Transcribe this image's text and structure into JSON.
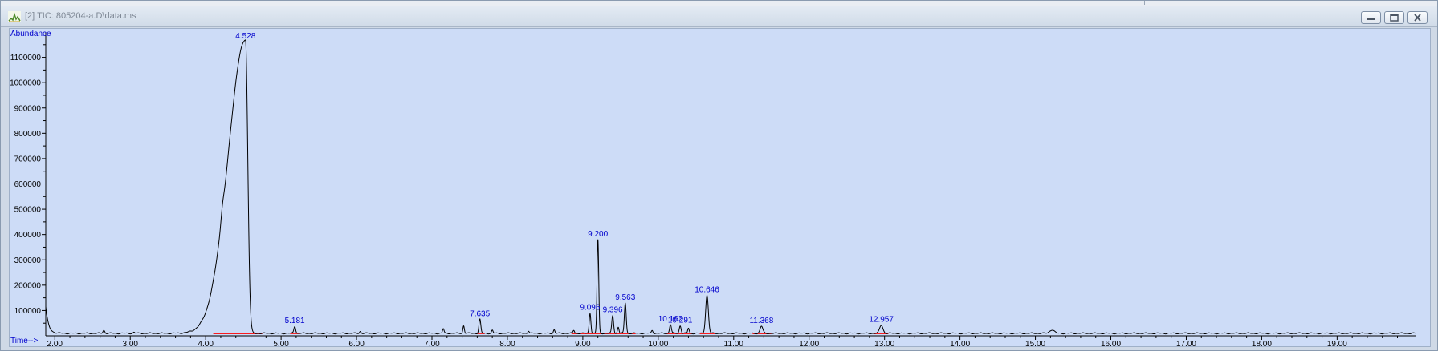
{
  "window": {
    "title": "[2] TIC: 805204-a.D\\data.ms",
    "icon": "chromatogram-app-icon",
    "controls": [
      "minimize-icon",
      "restore-icon",
      "close-icon"
    ]
  },
  "colors": {
    "background": "#cddcf7",
    "trace": "#000000",
    "labels": "#0000cc",
    "baseline": "#ff0000"
  },
  "chart_data": {
    "type": "line",
    "ylabel": "Abundance",
    "xlabel": "Time-->",
    "xlim": [
      1.88,
      20.05
    ],
    "ylim": [
      0,
      1200000
    ],
    "xticks": [
      "2.00",
      "3.00",
      "4.00",
      "5.00",
      "6.00",
      "7.00",
      "8.00",
      "9.00",
      "10.00",
      "11.00",
      "12.00",
      "13.00",
      "14.00",
      "15.00",
      "16.00",
      "17.00",
      "18.00",
      "19.00"
    ],
    "yticks": [
      "100000",
      "200000",
      "300000",
      "400000",
      "500000",
      "600000",
      "700000",
      "800000",
      "900000",
      "1000000",
      "1100000"
    ],
    "baseline_level": 10000,
    "initial_decay": {
      "start": 105000,
      "tau": 0.035
    },
    "peaks": [
      {
        "rt": 2.65,
        "height": 12000,
        "width": 0.012
      },
      {
        "rt": 3.05,
        "height": 4000,
        "width": 0.01
      },
      {
        "rt": 4.22,
        "height": 30000,
        "width": 0.02
      },
      {
        "rt": 4.528,
        "height": 1160000,
        "width": 0.03,
        "front": 0.23,
        "label": "4.528"
      },
      {
        "rt": 5.181,
        "height": 28000,
        "width": 0.012,
        "label": "5.181"
      },
      {
        "rt": 6.05,
        "height": 8000,
        "width": 0.01
      },
      {
        "rt": 7.15,
        "height": 18000,
        "width": 0.01
      },
      {
        "rt": 7.42,
        "height": 30000,
        "width": 0.01
      },
      {
        "rt": 7.635,
        "height": 55000,
        "width": 0.012,
        "label": "7.635"
      },
      {
        "rt": 7.8,
        "height": 12000,
        "width": 0.01
      },
      {
        "rt": 8.28,
        "height": 10000,
        "width": 0.01
      },
      {
        "rt": 8.62,
        "height": 14000,
        "width": 0.01
      },
      {
        "rt": 8.88,
        "height": 12000,
        "width": 0.01
      },
      {
        "rt": 9.096,
        "height": 80000,
        "width": 0.011,
        "label": "9.096"
      },
      {
        "rt": 9.2,
        "height": 370000,
        "width": 0.011,
        "label": "9.200"
      },
      {
        "rt": 9.396,
        "height": 70000,
        "width": 0.012,
        "label": "9.396"
      },
      {
        "rt": 9.47,
        "height": 25000,
        "width": 0.01
      },
      {
        "rt": 9.563,
        "height": 120000,
        "width": 0.012,
        "label": "9.563"
      },
      {
        "rt": 9.92,
        "height": 12000,
        "width": 0.01
      },
      {
        "rt": 10.162,
        "height": 35000,
        "width": 0.012,
        "label": "10.162"
      },
      {
        "rt": 10.291,
        "height": 30000,
        "width": 0.012,
        "label": "10.291"
      },
      {
        "rt": 10.4,
        "height": 20000,
        "width": 0.01
      },
      {
        "rt": 10.646,
        "height": 150000,
        "width": 0.018,
        "label": "10.646"
      },
      {
        "rt": 11.368,
        "height": 28000,
        "width": 0.018,
        "label": "11.368"
      },
      {
        "rt": 12.957,
        "height": 32000,
        "width": 0.022,
        "label": "12.957"
      },
      {
        "rt": 15.22,
        "height": 14000,
        "width": 0.03
      }
    ],
    "integration_baselines": [
      [
        4.1,
        4.75
      ],
      [
        5.12,
        5.25
      ],
      [
        7.58,
        7.7
      ],
      [
        8.85,
        9.7
      ],
      [
        10.1,
        10.45
      ],
      [
        10.55,
        10.75
      ],
      [
        11.25,
        11.5
      ],
      [
        12.85,
        13.05
      ]
    ]
  }
}
